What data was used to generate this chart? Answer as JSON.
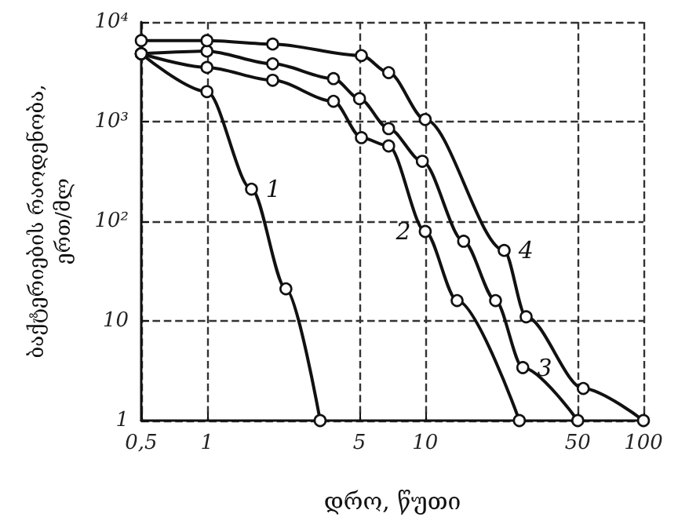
{
  "chart_data": {
    "type": "line",
    "xlabel": "დრო, წუთი",
    "ylabel": "ბაქტერიების რაოდენობა,\nერთ/მლ",
    "log": "xy",
    "grid": true,
    "legend": false,
    "marker": "circle",
    "line_style": "solid",
    "xlim": [
      0.5,
      100
    ],
    "xticks": [
      {
        "value": 0.5,
        "label": "0,5"
      },
      1,
      5,
      10,
      50,
      100
    ],
    "ylim": [
      1,
      10000
    ],
    "yticks": [
      1,
      10,
      {
        "value": 100,
        "label": "10²"
      },
      {
        "value": 1000,
        "label": "10³"
      },
      {
        "value": 10000,
        "label": "10⁴"
      }
    ],
    "series": [
      {
        "name": "1",
        "color": "#111111",
        "x": [
          0.5,
          1,
          1.6,
          2.3,
          3.3
        ],
        "values": [
          4800,
          2000,
          210,
          21,
          1
        ]
      },
      {
        "name": "2",
        "color": "#111111",
        "x": [
          0.5,
          1,
          2,
          3.8,
          5.1,
          6.8,
          10,
          14,
          27
        ],
        "values": [
          4800,
          3500,
          2600,
          1600,
          690,
          570,
          79,
          16,
          1
        ]
      },
      {
        "name": "3",
        "color": "#111111",
        "x": [
          0.5,
          1,
          2,
          3.8,
          5,
          6.8,
          9.7,
          15,
          21,
          28,
          50
        ],
        "values": [
          4800,
          5100,
          3800,
          2700,
          1700,
          850,
          400,
          63,
          16,
          3.4,
          1
        ]
      },
      {
        "name": "4",
        "color": "#111111",
        "x": [
          0.5,
          1,
          2,
          5.1,
          6.8,
          10,
          23,
          29,
          53,
          100
        ],
        "values": [
          6500,
          6500,
          6000,
          4600,
          3100,
          1050,
          51,
          11,
          2.1,
          1
        ]
      }
    ]
  }
}
